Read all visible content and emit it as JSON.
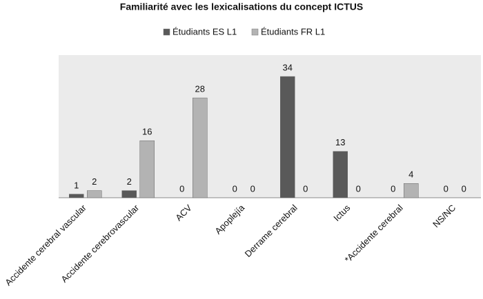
{
  "chart_data": {
    "type": "bar",
    "title": "Familiarité avec les lexicalisations du concept ICTUS",
    "categories": [
      "Accidente cerebral vascular",
      "Accidente cerebrovascular",
      "ACV",
      "Apoplejía",
      "Derrame cerebral",
      "Ictus",
      "*Accidente cerebral",
      "NS/NC"
    ],
    "series": [
      {
        "name": "Étudiants ES L1",
        "color": "#595959",
        "values": [
          1,
          2,
          0,
          0,
          34,
          13,
          0,
          0
        ]
      },
      {
        "name": "Étudiants FR L1",
        "color": "#b3b3b3",
        "values": [
          2,
          16,
          28,
          0,
          0,
          0,
          4,
          0
        ]
      }
    ],
    "ylim": [
      0,
      40
    ],
    "legend": "top"
  }
}
